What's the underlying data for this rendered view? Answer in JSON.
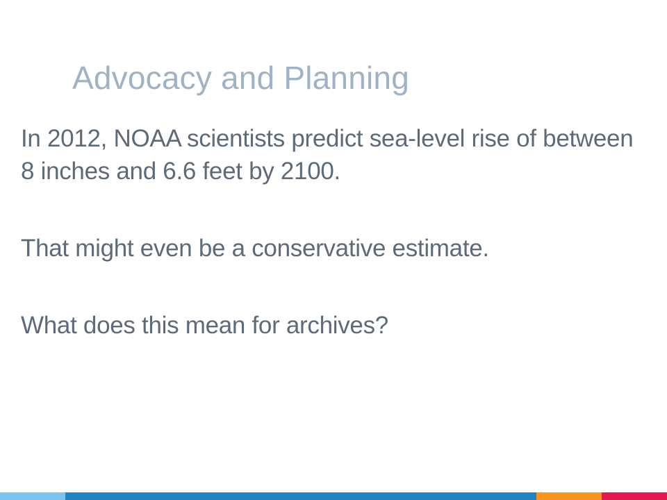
{
  "slide": {
    "title": "Advocacy and Planning",
    "paragraphs": [
      "In 2012, NOAA scientists predict sea-level rise of between 8 inches and 6.6 feet by 2100.",
      "That might even be a conservative estimate.",
      "What does this mean for archives?"
    ]
  },
  "colors": {
    "title": "#9fb3c5",
    "body_text": "#5d6b78",
    "background": "#ffffff",
    "bar_light_blue": "#7cc4f0",
    "bar_blue": "#2185c5",
    "bar_orange": "#f7941d",
    "bar_red": "#e4184f"
  }
}
